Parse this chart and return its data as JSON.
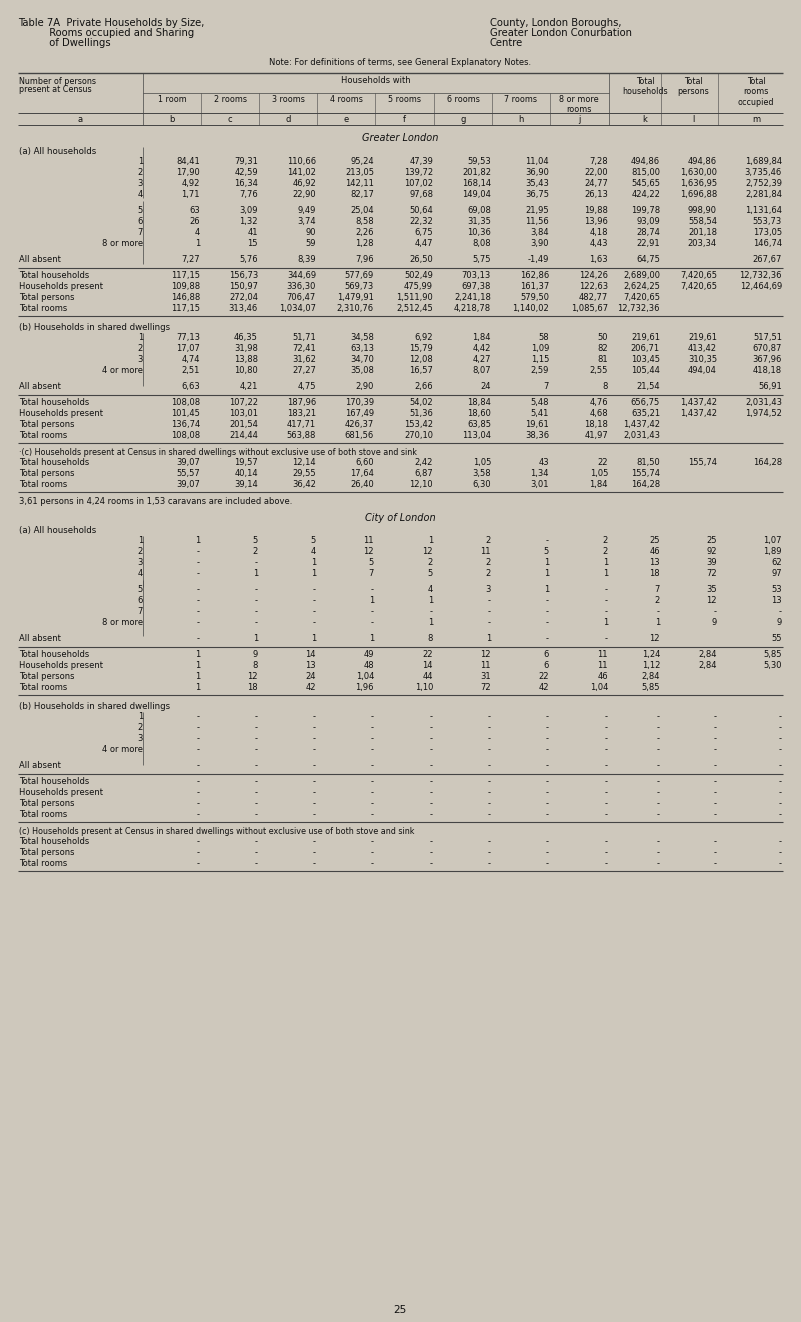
{
  "title_left1": "Table 7A  Private Households by Size,",
  "title_left2": "          Rooms occupied and Sharing",
  "title_left3": "          of Dwellings",
  "title_right1": "County, London Boroughs,",
  "title_right2": "Greater London Conurbation",
  "title_right3": "Centre",
  "note": "Note: For definitions of terms, see General Explanatory Notes.",
  "col_letters": [
    "a",
    "b",
    "c",
    "d",
    "e",
    "f",
    "g",
    "h",
    "j",
    "k",
    "l",
    "m"
  ],
  "section_greater_london": "Greater London",
  "section_a": "(a) All households",
  "gl_a_rows": [
    [
      "1",
      "84,41",
      "79,31",
      "110,66",
      "95,24",
      "47,39",
      "59,53",
      "11,04",
      "7,28",
      "494,86",
      "494,86",
      "1,689,84"
    ],
    [
      "2",
      "17,90",
      "42,59",
      "141,02",
      "213,05",
      "139,72",
      "201,82",
      "36,90",
      "22,00",
      "815,00",
      "1,630,00",
      "3,735,46"
    ],
    [
      "3",
      "4,92",
      "16,34",
      "46,92",
      "142,11",
      "107,02",
      "168,14",
      "35,43",
      "24,77",
      "545,65",
      "1,636,95",
      "2,752,39"
    ],
    [
      "4",
      "1,71",
      "7,76",
      "22,90",
      "82,17",
      "97,68",
      "149,04",
      "36,75",
      "26,13",
      "424,22",
      "1,696,88",
      "2,281,84"
    ],
    [
      "5",
      "63",
      "3,09",
      "9,49",
      "25,04",
      "50,64",
      "69,08",
      "21,95",
      "19,88",
      "199,78",
      "998,90",
      "1,131,64"
    ],
    [
      "6",
      "26",
      "1,32",
      "3,74",
      "8,58",
      "22,32",
      "31,35",
      "11,56",
      "13,96",
      "93,09",
      "558,54",
      "553,73"
    ],
    [
      "7",
      "4",
      "41",
      "90",
      "2,26",
      "6,75",
      "10,36",
      "3,84",
      "4,18",
      "28,74",
      "201,18",
      "173,05"
    ],
    [
      "8 or more",
      "1",
      "15",
      "59",
      "1,28",
      "4,47",
      "8,08",
      "3,90",
      "4,43",
      "22,91",
      "203,34",
      "146,74"
    ]
  ],
  "gl_a_absent": [
    "All absent",
    "7,27",
    "5,76",
    "8,39",
    "7,96",
    "26,50",
    "5,75",
    "-1,49",
    "1,63",
    "64,75",
    "",
    "267,67"
  ],
  "gl_a_totals": [
    [
      "Total households",
      "117,15",
      "156,73",
      "344,69",
      "577,69",
      "502,49",
      "703,13",
      "162,86",
      "124,26",
      "2,689,00",
      "7,420,65",
      "12,732,36"
    ],
    [
      "Households present",
      "109,88",
      "150,97",
      "336,30",
      "569,73",
      "475,99",
      "697,38",
      "161,37",
      "122,63",
      "2,624,25",
      "7,420,65",
      "12,464,69"
    ],
    [
      "Total persons",
      "146,88",
      "272,04",
      "706,47",
      "1,479,91",
      "1,511,90",
      "2,241,18",
      "579,50",
      "482,77",
      "7,420,65",
      "",
      ""
    ],
    [
      "Total rooms",
      "117,15",
      "313,46",
      "1,034,07",
      "2,310,76",
      "2,512,45",
      "4,218,78",
      "1,140,02",
      "1,085,67",
      "12,732,36",
      "",
      ""
    ]
  ],
  "section_b": "(b) Households in shared dwellings",
  "gl_b_rows": [
    [
      "1",
      "77,13",
      "46,35",
      "51,71",
      "34,58",
      "6,92",
      "1,84",
      "58",
      "50",
      "219,61",
      "219,61",
      "517,51"
    ],
    [
      "2",
      "17,07",
      "31,98",
      "72,41",
      "63,13",
      "15,79",
      "4,42",
      "1,09",
      "82",
      "206,71",
      "413,42",
      "670,87"
    ],
    [
      "3",
      "4,74",
      "13,88",
      "31,62",
      "34,70",
      "12,08",
      "4,27",
      "1,15",
      "81",
      "103,45",
      "310,35",
      "367,96"
    ],
    [
      "4 or more",
      "2,51",
      "10,80",
      "27,27",
      "35,08",
      "16,57",
      "8,07",
      "2,59",
      "2,55",
      "105,44",
      "494,04",
      "418,18"
    ]
  ],
  "gl_b_absent": [
    "All absent",
    "6,63",
    "4,21",
    "4,75",
    "2,90",
    "2,66",
    "24",
    "7",
    "8",
    "21,54",
    "",
    "56,91"
  ],
  "gl_b_totals": [
    [
      "Total households",
      "108,08",
      "107,22",
      "187,96",
      "170,39",
      "54,02",
      "18,84",
      "5,48",
      "4,76",
      "656,75",
      "1,437,42",
      "2,031,43"
    ],
    [
      "Households present",
      "101,45",
      "103,01",
      "183,21",
      "167,49",
      "51,36",
      "18,60",
      "5,41",
      "4,68",
      "635,21",
      "1,437,42",
      "1,974,52"
    ],
    [
      "Total persons",
      "136,74",
      "201,54",
      "417,71",
      "426,37",
      "153,42",
      "63,85",
      "19,61",
      "18,18",
      "1,437,42",
      "",
      ""
    ],
    [
      "Total rooms",
      "108,08",
      "214,44",
      "563,88",
      "681,56",
      "270,10",
      "113,04",
      "38,36",
      "41,97",
      "2,031,43",
      "",
      ""
    ]
  ],
  "section_c": "·(c) Households present at Census in shared dwellings without exclusive use of both stove and sink",
  "gl_c_totals": [
    [
      "Total households",
      "39,07",
      "19,57",
      "12,14",
      "6,60",
      "2,42",
      "1,05",
      "43",
      "22",
      "81,50",
      "155,74",
      "164,28"
    ],
    [
      "Total persons",
      "55,57",
      "40,14",
      "29,55",
      "17,64",
      "6,87",
      "3,58",
      "1,34",
      "1,05",
      "155,74",
      "",
      ""
    ],
    [
      "Total rooms",
      "39,07",
      "39,14",
      "36,42",
      "26,40",
      "12,10",
      "6,30",
      "3,01",
      "1,84",
      "164,28",
      "",
      ""
    ]
  ],
  "caravan_note": "3,61 persons in 4,24 rooms in 1,53 caravans are included above.",
  "section_city": "City of London",
  "section_a2": "(a) All households",
  "city_a_rows": [
    [
      "1",
      "1",
      "5",
      "5",
      "11",
      "1",
      "2",
      "-",
      "2",
      "25",
      "25",
      "1,07"
    ],
    [
      "2",
      "-",
      "2",
      "4",
      "12",
      "12",
      "11",
      "5",
      "2",
      "46",
      "92",
      "1,89"
    ],
    [
      "3",
      "-",
      "-",
      "1",
      "5",
      "2",
      "2",
      "1",
      "1",
      "13",
      "39",
      "62"
    ],
    [
      "4",
      "-",
      "1",
      "1",
      "7",
      "5",
      "2",
      "1",
      "1",
      "18",
      "72",
      "97"
    ],
    [
      "5",
      "-",
      "-",
      "-",
      "-",
      "4",
      "3",
      "1",
      "-",
      "7",
      "35",
      "53"
    ],
    [
      "6",
      "-",
      "-",
      "-",
      "1",
      "1",
      "-",
      "-",
      "-",
      "2",
      "12",
      "13"
    ],
    [
      "7",
      "-",
      "-",
      "-",
      "-",
      "-",
      "-",
      "-",
      "-",
      "-",
      "-",
      "-"
    ],
    [
      "8 or more",
      "-",
      "-",
      "-",
      "-",
      "1",
      "-",
      "-",
      "1",
      "1",
      "9",
      "9"
    ]
  ],
  "city_a_absent": [
    "All absent",
    "-",
    "1",
    "1",
    "1",
    "8",
    "1",
    "-",
    "-",
    "12",
    "",
    "55"
  ],
  "city_a_totals": [
    [
      "Total households",
      "1",
      "9",
      "14",
      "49",
      "22",
      "12",
      "6",
      "11",
      "1,24",
      "2,84",
      "5,85"
    ],
    [
      "Households present",
      "1",
      "8",
      "13",
      "48",
      "14",
      "11",
      "6",
      "11",
      "1,12",
      "2,84",
      "5,30"
    ],
    [
      "Total persons",
      "1",
      "12",
      "24",
      "1,04",
      "44",
      "31",
      "22",
      "46",
      "2,84",
      "",
      ""
    ],
    [
      "Total rooms",
      "1",
      "18",
      "42",
      "1,96",
      "1,10",
      "72",
      "42",
      "1,04",
      "5,85",
      "",
      ""
    ]
  ],
  "section_b2": "(b) Households in shared dwellings",
  "city_b_rows": [
    [
      "1",
      "-",
      "-",
      "-",
      "-",
      "-",
      "-",
      "-",
      "-",
      "-",
      "-",
      "-"
    ],
    [
      "2",
      "-",
      "-",
      "-",
      "-",
      "-",
      "-",
      "-",
      "-",
      "-",
      "-",
      "-"
    ],
    [
      "3",
      "-",
      "-",
      "-",
      "-",
      "-",
      "-",
      "-",
      "-",
      "-",
      "-",
      "-"
    ],
    [
      "4 or more",
      "-",
      "-",
      "-",
      "-",
      "-",
      "-",
      "-",
      "-",
      "-",
      "-",
      "-"
    ]
  ],
  "city_b_absent": [
    "All absent",
    "-",
    "-",
    "-",
    "-",
    "-",
    "-",
    "-",
    "-",
    "-",
    "-",
    "-"
  ],
  "city_b_totals": [
    [
      "Total households",
      "-",
      "-",
      "-",
      "-",
      "-",
      "-",
      "-",
      "-",
      "-",
      "-",
      "-"
    ],
    [
      "Households present",
      "-",
      "-",
      "-",
      "-",
      "-",
      "-",
      "-",
      "-",
      "-",
      "-",
      "-"
    ],
    [
      "Total persons",
      "-",
      "-",
      "-",
      "-",
      "-",
      "-",
      "-",
      "-",
      "-",
      "-",
      "-"
    ],
    [
      "Total rooms",
      "-",
      "-",
      "-",
      "-",
      "-",
      "-",
      "-",
      "-",
      "-",
      "-",
      "-"
    ]
  ],
  "section_c2": "(c) Households present at Census in shared dwellings without exclusive use of both stove and sink",
  "city_c_totals": [
    [
      "Total households",
      "-",
      "-",
      "-",
      "-",
      "-",
      "-",
      "-",
      "-",
      "-",
      "-",
      "-"
    ],
    [
      "Total persons",
      "-",
      "-",
      "-",
      "-",
      "-",
      "-",
      "-",
      "-",
      "-",
      "-",
      "-"
    ],
    [
      "Total rooms",
      "-",
      "-",
      "-",
      "-",
      "-",
      "-",
      "-",
      "-",
      "-",
      "-",
      "-"
    ]
  ],
  "page_number": "25",
  "bg_color": "#cec8bc",
  "text_color": "#111111",
  "line_color": "#444444"
}
